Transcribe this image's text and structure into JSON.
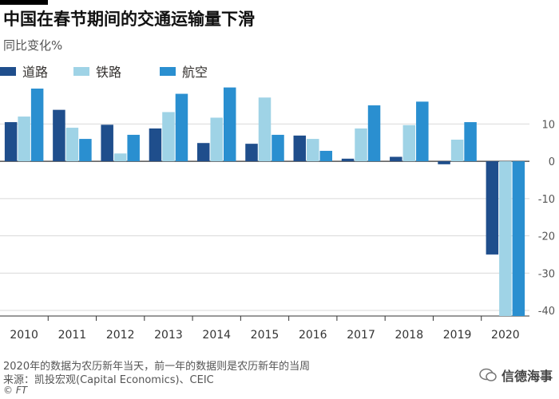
{
  "header": {
    "title": "中国在春节期间的交通运输量下滑",
    "subtitle": "同比变化%"
  },
  "legend": [
    {
      "label": "道路",
      "color": "#1f4e8c"
    },
    {
      "label": "铁路",
      "color": "#9fd3e6"
    },
    {
      "label": "航空",
      "color": "#2a8fd0"
    }
  ],
  "chart_data": {
    "type": "bar",
    "categories": [
      "2010",
      "2011",
      "2012",
      "2013",
      "2014",
      "2015",
      "2016",
      "2017",
      "2018",
      "2019",
      "2020"
    ],
    "series": [
      {
        "name": "道路",
        "color": "#1f4e8c",
        "values": [
          10.5,
          13.8,
          9.8,
          8.8,
          4.9,
          4.7,
          6.9,
          0.7,
          1.2,
          -0.8,
          -25
        ]
      },
      {
        "name": "铁路",
        "color": "#9fd3e6",
        "values": [
          12,
          9,
          2.1,
          13.2,
          11.7,
          17.1,
          6,
          8.8,
          9.7,
          5.8,
          -41.5
        ]
      },
      {
        "name": "航空",
        "color": "#2a8fd0",
        "values": [
          19.5,
          6,
          7.1,
          18.1,
          19.8,
          7.1,
          2.8,
          15,
          16,
          10.5,
          -41.5
        ]
      }
    ],
    "ylim": [
      -41.5,
      21
    ],
    "yticks": [
      10,
      0,
      -10,
      -20,
      -30,
      -40
    ],
    "ytick_labels": [
      "10",
      "0",
      "-10",
      "-20",
      "-30",
      "-40"
    ],
    "grid": true
  },
  "footer": {
    "note": "2020年的数据为农历新年当天，前一年的数据则是农历新年的当周",
    "source": "来源：凯投宏观(Capital Economics)、CEIC",
    "copyright": "© FT",
    "watermark": "信德海事"
  }
}
